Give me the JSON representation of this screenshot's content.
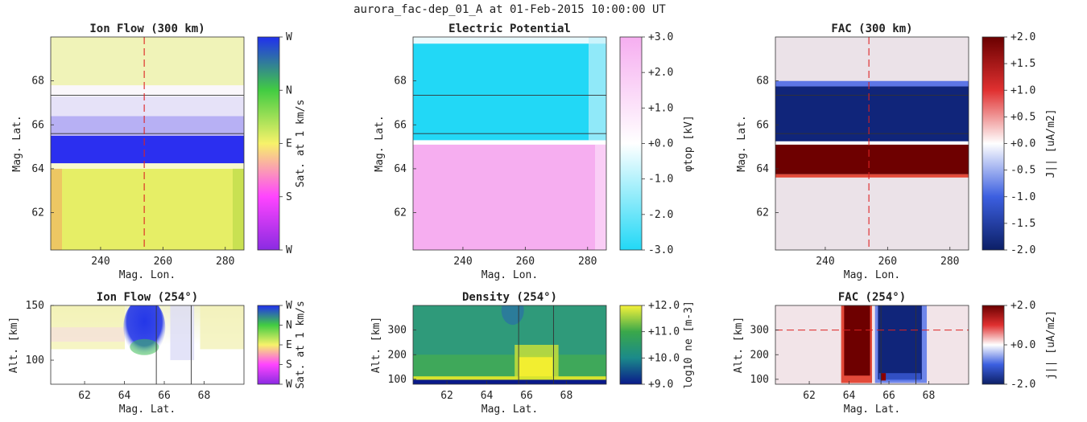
{
  "suptitle": "aurora_fac-dep_01_A at 01-Feb-2015 10:00:00 UT",
  "chart_data": [
    {
      "id": "ion-flow-300",
      "type": "heatmap",
      "title": "Ion Flow (300 km)",
      "xlabel": "Mag. Lon.",
      "ylabel": "Mag. Lat.",
      "xlim": [
        224,
        286
      ],
      "ylim": [
        60.3,
        70.0
      ],
      "xticks": [
        240,
        260,
        280
      ],
      "xticklabels": [
        "240",
        "260",
        "280"
      ],
      "yticks": [
        62,
        64,
        66,
        68
      ],
      "yticklabels": [
        "62",
        "64",
        "66",
        "68"
      ],
      "bands": [
        {
          "y0": 60.3,
          "y1": 64.0,
          "color": "#e6ee66"
        },
        {
          "y0": 64.0,
          "y1": 64.25,
          "color": "#f8f8d0"
        },
        {
          "y0": 64.25,
          "y1": 65.5,
          "color": "#2b2ff0"
        },
        {
          "y0": 65.5,
          "y1": 66.4,
          "color": "#b7b0f4"
        },
        {
          "y0": 66.4,
          "y1": 67.3,
          "color": "#e6e2f8"
        },
        {
          "y0": 67.3,
          "y1": 67.8,
          "color": "#faf7fb"
        },
        {
          "y0": 67.8,
          "y1": 70.0,
          "color": "#f0f3b8"
        }
      ],
      "hlines": [
        65.6,
        67.35
      ],
      "vline": 254,
      "colorbar": {
        "ticks": [
          "W",
          "N",
          "E",
          "S",
          "W"
        ],
        "label": "Sat. at 1 km/s",
        "stops": [
          "#8a2be2",
          "#ff44ff",
          "#f7f26a",
          "#42cc42",
          "#2030ee"
        ]
      }
    },
    {
      "id": "electric-potential",
      "type": "heatmap",
      "title": "Electric Potential",
      "xlabel": "Mag. Lon.",
      "ylabel": "Mag. Lat.",
      "xlim": [
        224,
        286
      ],
      "ylim": [
        60.3,
        70.0
      ],
      "xticks": [
        240,
        260,
        280
      ],
      "xticklabels": [
        "240",
        "260",
        "280"
      ],
      "yticks": [
        62,
        64,
        66,
        68
      ],
      "yticklabels": [
        "62",
        "64",
        "66",
        "68"
      ],
      "bands": [
        {
          "y0": 60.3,
          "y1": 65.1,
          "color": "#f6aef0"
        },
        {
          "y0": 65.1,
          "y1": 65.3,
          "color": "#ffffff"
        },
        {
          "y0": 65.3,
          "y1": 69.7,
          "color": "#22d8f6"
        },
        {
          "y0": 69.7,
          "y1": 70.0,
          "color": "#e8fafe"
        }
      ],
      "hlines": [
        65.6,
        67.35
      ],
      "colorbar": {
        "ticks": [
          "+3.0",
          "+2.0",
          "+1.0",
          "+0.0",
          "-1.0",
          "-2.0",
          "-3.0"
        ],
        "label": "φtop [kV]",
        "stops": [
          "#22d8f6",
          "#ffffff",
          "#f6aef0"
        ]
      }
    },
    {
      "id": "fac-300",
      "type": "heatmap",
      "title": "FAC (300 km)",
      "xlabel": "Mag. Lon.",
      "ylabel": "Mag. Lat.",
      "xlim": [
        224,
        286
      ],
      "ylim": [
        60.3,
        70.0
      ],
      "xticks": [
        240,
        260,
        280
      ],
      "xticklabels": [
        "240",
        "260",
        "280"
      ],
      "yticks": [
        62,
        64,
        66,
        68
      ],
      "yticklabels": [
        "62",
        "64",
        "66",
        "68"
      ],
      "bands": [
        {
          "y0": 60.3,
          "y1": 63.6,
          "color": "#ebe2e8"
        },
        {
          "y0": 63.6,
          "y1": 63.75,
          "color": "#e34a3a"
        },
        {
          "y0": 63.75,
          "y1": 65.1,
          "color": "#6e0000"
        },
        {
          "y0": 65.1,
          "y1": 65.25,
          "color": "#ffffff"
        },
        {
          "y0": 65.25,
          "y1": 67.75,
          "color": "#10257a"
        },
        {
          "y0": 67.75,
          "y1": 68.0,
          "color": "#5d76e6"
        },
        {
          "y0": 68.0,
          "y1": 70.0,
          "color": "#ebe2e8"
        }
      ],
      "hlines": [
        65.6,
        67.35
      ],
      "vline": 254,
      "colorbar": {
        "ticks": [
          "+2.0",
          "+1.5",
          "+1.0",
          "+0.5",
          "+0.0",
          "-0.5",
          "-1.0",
          "-1.5",
          "-2.0"
        ],
        "label": "J|| [uA/m2]",
        "stops": [
          "#0c1f66",
          "#3c5fe0",
          "#ffffff",
          "#e03030",
          "#6a0000"
        ]
      }
    },
    {
      "id": "ion-flow-254",
      "type": "heatmap",
      "title": "Ion Flow (254°)",
      "xlabel": "Mag. Lat.",
      "ylabel": "Alt. [km]",
      "xlim": [
        60.3,
        70.0
      ],
      "ylim": [
        78,
        150
      ],
      "xticks": [
        62,
        64,
        66,
        68
      ],
      "xticklabels": [
        "62",
        "64",
        "66",
        "68"
      ],
      "yticks": [
        100,
        150
      ],
      "yticklabels": [
        "100",
        "150"
      ],
      "vlines": [
        65.6,
        67.35
      ],
      "colorbar": {
        "ticks": [
          "W",
          "N",
          "E",
          "S",
          "W"
        ],
        "label": "Sat. at 1 km/s",
        "stops": [
          "#8a2be2",
          "#ff44ff",
          "#f7f26a",
          "#42cc42",
          "#2030ee"
        ]
      }
    },
    {
      "id": "density-254",
      "type": "heatmap",
      "title": "Density (254°)",
      "xlabel": "Mag. Lat.",
      "ylabel": "Alt. [km]",
      "xlim": [
        60.3,
        70.0
      ],
      "ylim": [
        80,
        400
      ],
      "xticks": [
        62,
        64,
        66,
        68
      ],
      "xticklabels": [
        "62",
        "64",
        "66",
        "68"
      ],
      "yticks": [
        100,
        200,
        300
      ],
      "yticklabels": [
        "100",
        "200",
        "300"
      ],
      "vlines": [
        65.6,
        67.35
      ],
      "colorbar": {
        "ticks": [
          "+12.0",
          "+11.0",
          "+10.0",
          "+9.0"
        ],
        "label": "log10 ne [m-3]",
        "stops": [
          "#0a1a8a",
          "#1b8a8a",
          "#3aa84a",
          "#f6f23a"
        ]
      }
    },
    {
      "id": "fac-254",
      "type": "heatmap",
      "title": "FAC (254°)",
      "xlabel": "Mag. Lat.",
      "ylabel": "Alt. [km]",
      "xlim": [
        60.3,
        70.0
      ],
      "ylim": [
        80,
        400
      ],
      "xticks": [
        62,
        64,
        66,
        68
      ],
      "xticklabels": [
        "62",
        "64",
        "66",
        "68"
      ],
      "yticks": [
        100,
        200,
        300
      ],
      "yticklabels": [
        "100",
        "200",
        "300"
      ],
      "vlines": [
        65.6,
        67.35
      ],
      "hline": 300,
      "colorbar": {
        "ticks": [
          "+2.0",
          "+0.0",
          "-2.0"
        ],
        "label": "j|| [uA/m2]",
        "stops": [
          "#0c1f66",
          "#3c5fe0",
          "#ffffff",
          "#e03030",
          "#6a0000"
        ]
      }
    }
  ]
}
